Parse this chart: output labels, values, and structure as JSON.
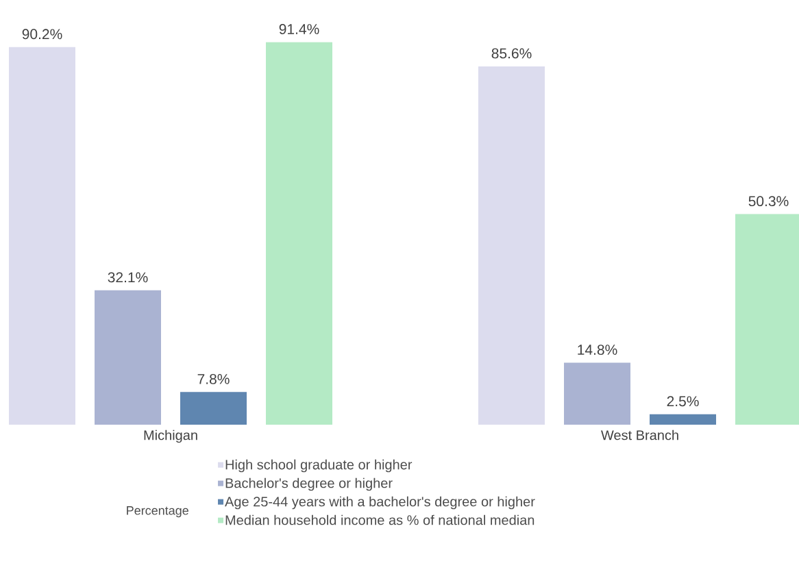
{
  "chart_data": {
    "type": "bar",
    "categories": [
      "Michigan",
      "West Branch"
    ],
    "legend": "bottom",
    "legend_title": "Percentage",
    "series": [
      {
        "name": "High school graduate or higher",
        "color": "#dcdcee",
        "values": [
          90.2,
          85.6
        ],
        "value_labels": [
          "90.2%",
          "85.6%"
        ]
      },
      {
        "name": "Bachelor's degree or higher",
        "color": "#aab3d2",
        "values": [
          32.1,
          14.8
        ],
        "value_labels": [
          "32.1%",
          "14.8%"
        ]
      },
      {
        "name": "Age 25-44 years with a bachelor's degree or higher",
        "color": "#5f86b0",
        "values": [
          7.8,
          2.5
        ],
        "value_labels": [
          "7.8%",
          "2.5%"
        ]
      },
      {
        "name": "Median household income as % of national median",
        "color": "#b4eac5",
        "values": [
          91.4,
          50.3
        ],
        "value_labels": [
          "91.4%",
          "50.3%"
        ]
      }
    ]
  }
}
